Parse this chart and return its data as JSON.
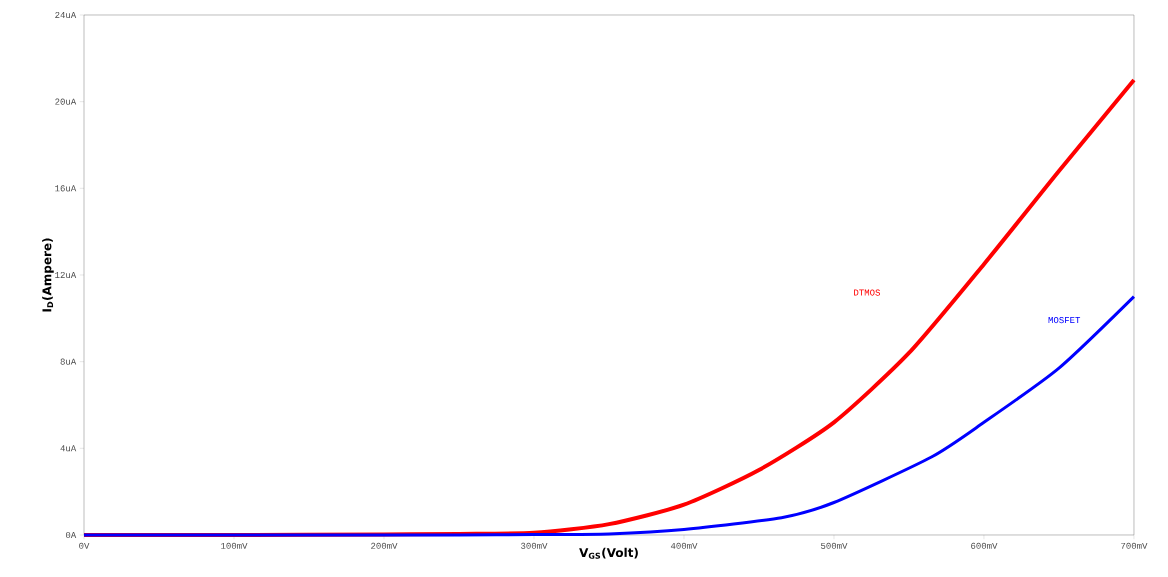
{
  "chart_data": {
    "type": "line",
    "xlabel": "**V$_{GS}$(Volt)**",
    "ylabel": "**I$_{D}$(Ampere)**",
    "x": [
      0,
      100,
      200,
      250,
      300,
      350,
      400,
      450,
      500,
      550,
      600,
      650,
      700
    ],
    "series": [
      {
        "name": "DTMOS",
        "color": "#ff0000",
        "values": [
          0,
          0,
          0.02,
          0.05,
          0.1,
          0.5,
          1.4,
          3.0,
          5.2,
          8.4,
          12.5,
          16.8,
          21.0
        ]
      },
      {
        "name": "MOSFET",
        "color": "#0000ff",
        "x": [
          0,
          100,
          200,
          250,
          300,
          350,
          400,
          465,
          500,
          565,
          600,
          650,
          700
        ],
        "values": [
          0,
          0,
          0,
          0,
          0.02,
          0.05,
          0.25,
          0.8,
          1.5,
          3.6,
          5.2,
          7.7,
          11.0
        ]
      }
    ],
    "xlim": [
      0,
      700
    ],
    "ylim": [
      0,
      24
    ],
    "xticks": [
      {
        "value": 0,
        "label": "0V"
      },
      {
        "value": 100,
        "label": "100mV"
      },
      {
        "value": 200,
        "label": "200mV"
      },
      {
        "value": 300,
        "label": "300mV"
      },
      {
        "value": 400,
        "label": "400mV"
      },
      {
        "value": 500,
        "label": "500mV"
      },
      {
        "value": 600,
        "label": "600mV"
      },
      {
        "value": 700,
        "label": "700mV"
      }
    ],
    "yticks": [
      {
        "value": 0,
        "label": "0A"
      },
      {
        "value": 4,
        "label": "4uA"
      },
      {
        "value": 8,
        "label": "8uA"
      },
      {
        "value": 12,
        "label": "12uA"
      },
      {
        "value": 16,
        "label": "16uA"
      },
      {
        "value": 20,
        "label": "20uA"
      },
      {
        "value": 24,
        "label": "24uA"
      }
    ],
    "grid": false,
    "legend": false,
    "marker": "none",
    "line_style": "solid"
  }
}
